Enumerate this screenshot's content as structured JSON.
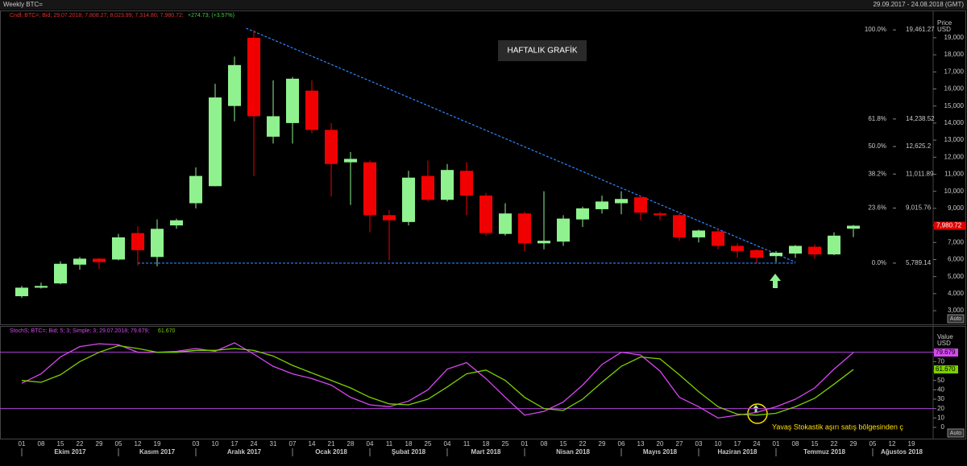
{
  "header": {
    "title": "Weekly BTC=",
    "range": "29.09.2017 - 24.08.2018 (GMT)"
  },
  "chart_data": [
    {
      "type": "candlestick",
      "legend": "Cndl; BTC=; Bid; 29.07.2018; 7,808.27; 8,023.99; 7,314.80; 7,980.72;",
      "change": "+274.73; (+3.57%)",
      "annotation": "HAFTALIK GRAFİK",
      "y_label": [
        "Price",
        "USD"
      ],
      "auto_button": "Auto",
      "categories": [
        "01",
        "08",
        "15",
        "22",
        "29",
        "05",
        "12",
        "19",
        null,
        "03",
        "10",
        "17",
        "24",
        "31",
        "07",
        "14",
        "21",
        "28",
        "04",
        "11",
        "18",
        "25",
        "04",
        "11",
        "18",
        "25",
        "01",
        "08",
        "15",
        "22",
        "29",
        "06",
        "13",
        "20",
        "27",
        "03",
        "10",
        "17",
        "24",
        "01",
        "08",
        "15",
        "22",
        "29",
        "05",
        "12",
        "19"
      ],
      "months": [
        "Ekim 2017",
        "Kasım 2017",
        "Aralık 2017",
        "Ocak 2018",
        "Şubat 2018",
        "Mart 2018",
        "Nisan 2018",
        "Mayıs 2018",
        "Haziran 2018",
        "Temmuz 2018",
        "Ağustos 2018"
      ],
      "open": [
        3850,
        4350,
        4600,
        5700,
        6050,
        6000,
        7550,
        6150,
        8000,
        9300,
        10300,
        15000,
        19000,
        13200,
        14000,
        15900,
        13600,
        11700,
        11700,
        8600,
        8200,
        10900,
        9500,
        11200,
        9750,
        7500,
        8700,
        6950,
        7050,
        8350,
        8950,
        9300,
        9650,
        8700,
        8600,
        7300,
        7650,
        6800,
        6550,
        6200,
        6350,
        6750,
        6300,
        7808.27,
        null,
        null,
        null
      ],
      "high": [
        4450,
        4650,
        5900,
        6150,
        6100,
        7500,
        7950,
        8350,
        8400,
        11400,
        16300,
        17900,
        19450,
        16500,
        16700,
        16500,
        14000,
        12300,
        11800,
        8900,
        11200,
        11800,
        11600,
        11700,
        9900,
        9300,
        8800,
        10000,
        8600,
        9100,
        9750,
        10000,
        9750,
        8800,
        8700,
        7750,
        7800,
        6950,
        6600,
        6500,
        6850,
        6900,
        7600,
        8023.99,
        null,
        null,
        null
      ],
      "low": [
        3750,
        4300,
        4550,
        5400,
        5450,
        5950,
        5650,
        5600,
        7800,
        9000,
        10300,
        14100,
        10900,
        12800,
        12800,
        13400,
        9700,
        9200,
        7600,
        5950,
        8000,
        9400,
        9400,
        8600,
        7400,
        7400,
        6500,
        6600,
        6800,
        7900,
        8700,
        8650,
        8300,
        8300,
        7100,
        7000,
        6600,
        6100,
        5800,
        5850,
        6100,
        6050,
        6250,
        7314.8,
        null,
        null,
        null
      ],
      "close": [
        4350,
        4450,
        5750,
        6050,
        5850,
        7300,
        6550,
        7800,
        8300,
        10900,
        15500,
        17400,
        14400,
        14400,
        16600,
        13600,
        11600,
        11900,
        8600,
        8300,
        10800,
        9500,
        11250,
        9750,
        7550,
        8700,
        6950,
        7100,
        8400,
        9000,
        9400,
        9550,
        8750,
        8600,
        7300,
        7700,
        6800,
        6500,
        6100,
        6400,
        6800,
        6300,
        7400,
        7980.72,
        null,
        null,
        null
      ],
      "up_color": "#8ff28f",
      "down_color": "#f00000",
      "ylim": [
        2200,
        20600
      ],
      "yticks": [
        {
          "value": 3000,
          "label": "3,000"
        },
        {
          "value": 4000,
          "label": "4,000"
        },
        {
          "value": 5000,
          "label": "5,000"
        },
        {
          "value": 6000,
          "label": "6,000"
        },
        {
          "value": 7000,
          "label": "7,000"
        },
        {
          "value": 8000,
          "label": "8,000"
        },
        {
          "value": 9000,
          "label": "9,000"
        },
        {
          "value": 10000,
          "label": "10,000"
        },
        {
          "value": 11000,
          "label": "11,000"
        },
        {
          "value": 12000,
          "label": "12,000"
        },
        {
          "value": 13000,
          "label": "13,000"
        },
        {
          "value": 14000,
          "label": "14,000"
        },
        {
          "value": 15000,
          "label": "15,000"
        },
        {
          "value": 16000,
          "label": "16,000"
        },
        {
          "value": 17000,
          "label": "17,000"
        },
        {
          "value": 18000,
          "label": "18,000"
        },
        {
          "value": 19000,
          "label": "19,000"
        }
      ],
      "fib_levels": [
        {
          "percent": "100.0%",
          "value": 19461.27,
          "label": "19,461.27"
        },
        {
          "percent": "61.8%",
          "value": 14238.52,
          "label": "14,238.52"
        },
        {
          "percent": "50.0%",
          "value": 12625.2,
          "label": "12,625.2"
        },
        {
          "percent": "38.2%",
          "value": 11011.89,
          "label": "11,011.89"
        },
        {
          "percent": "23.6%",
          "value": 9015.76,
          "label": "9,015.76"
        },
        {
          "percent": "0.0%",
          "value": 5789.14,
          "label": "5,789.14"
        }
      ],
      "trendlines": [
        {
          "x": [
            11.6,
            40
          ],
          "y": [
            19560,
            5850
          ]
        },
        {
          "x": [
            6,
            40
          ],
          "y": [
            5789.14,
            5789.14
          ]
        }
      ],
      "trendline_color": "#2f86ff",
      "price_tag": {
        "value": 7980.72,
        "label": "7,980.72",
        "color": "#e00000"
      }
    },
    {
      "type": "line",
      "legend": "StochS; BTC=; Bid; 5; 3; Simple; 3; 29.07.2018; 79.679;",
      "legend_d": "61.670",
      "annotation": "Yavaş Stokastik aşırı satış bölgesinden ç",
      "y_label": [
        "Value",
        "USD"
      ],
      "auto_button": "Auto",
      "ylim": [
        -12,
        108
      ],
      "yticks": [
        0,
        10,
        20,
        30,
        40,
        50,
        60,
        70,
        80
      ],
      "levels": [
        80,
        20
      ],
      "level_color": "#b040d8",
      "series": [
        {
          "color": "#d648f0",
          "values": [
            47,
            57,
            75,
            86,
            89,
            88,
            80,
            80,
            81,
            84,
            81,
            90,
            78,
            65,
            57,
            52,
            45,
            32,
            24,
            22,
            28,
            40,
            62,
            69,
            52,
            32,
            13,
            17,
            27,
            45,
            67,
            80,
            77,
            60,
            32,
            22,
            10,
            13,
            16,
            22,
            30,
            42,
            62,
            79.679,
            null,
            null,
            null
          ],
          "tag": {
            "value": 79.679,
            "label": "79.679"
          }
        },
        {
          "color": "#7cd000",
          "values": [
            50,
            48,
            56,
            70,
            80,
            87,
            84,
            80,
            80,
            82,
            82,
            84,
            82,
            76,
            66,
            58,
            50,
            42,
            32,
            25,
            24,
            30,
            43,
            57,
            61,
            50,
            32,
            20,
            18,
            30,
            48,
            65,
            75,
            73,
            56,
            38,
            22,
            14,
            13,
            15,
            22,
            31,
            46,
            61.67,
            null,
            null,
            null
          ],
          "tag": {
            "value": 61.67,
            "label": "61.670"
          }
        }
      ]
    }
  ]
}
